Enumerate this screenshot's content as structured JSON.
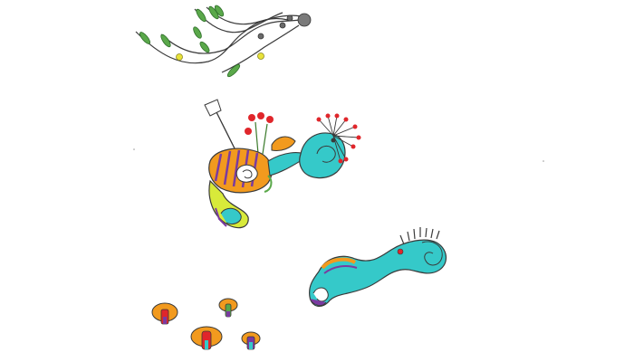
{
  "image": {
    "background": "#ffffff",
    "palette": {
      "ink": "#3a3a3a",
      "cyan": "#35c9c9",
      "lime": "#d8ea3a",
      "orange": "#f29a1e",
      "purple": "#7a3ba0",
      "red": "#e0262b",
      "green": "#5aa84a",
      "grey": "#6a6a6a"
    }
  }
}
